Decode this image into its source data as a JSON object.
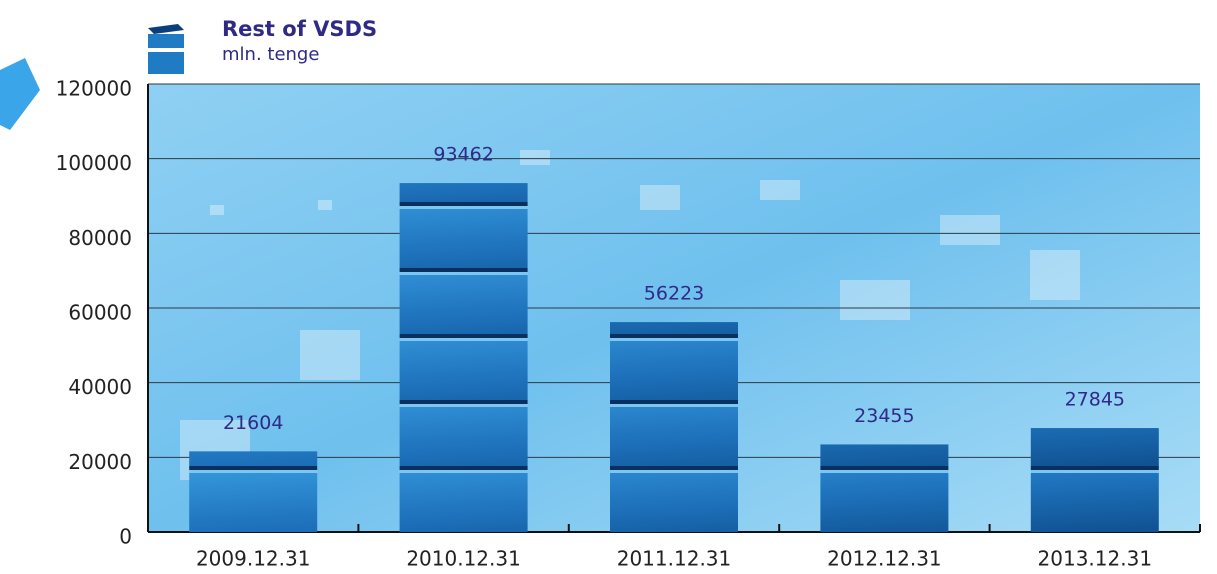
{
  "chart_data": {
    "type": "bar",
    "title": "Rest of VSDS",
    "subtitle": "mln. tenge",
    "categories": [
      "2009.12.31",
      "2010.12.31",
      "2011.12.31",
      "2012.12.31",
      "2013.12.31"
    ],
    "values": [
      21604,
      93462,
      56223,
      23455,
      27845
    ],
    "color": "#1f7cc4",
    "ylim": [
      0,
      120000
    ],
    "yticks": [
      0,
      20000,
      40000,
      60000,
      80000,
      100000,
      120000
    ],
    "grid": true
  }
}
